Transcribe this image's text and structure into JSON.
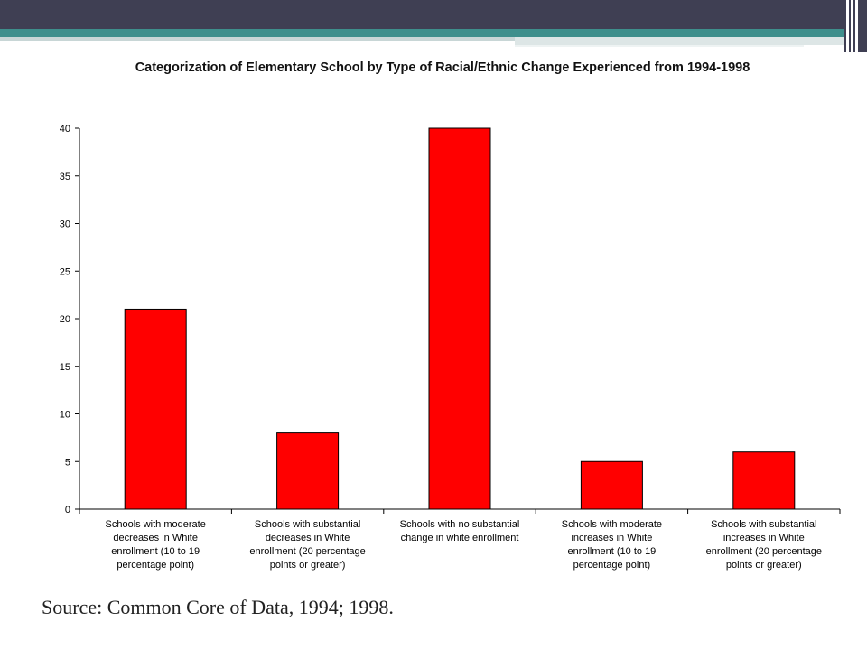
{
  "chart_data": {
    "type": "bar",
    "title": "Categorization of Elementary School by Type of Racial/Ethnic Change Experienced from 1994-1998",
    "categories": [
      "Schools with moderate decreases in White enrollment (10 to 19 percentage point)",
      "Schools with substantial decreases in White enrollment (20 percentage points or greater)",
      "Schools with no substantial change in white enrollment",
      "Schools with moderate increases in White enrollment (10 to 19 percentage point)",
      "Schools with substantial increases in White enrollment (20 percentage points or greater)"
    ],
    "category_lines": [
      [
        "Schools with moderate",
        "decreases in White",
        "enrollment (10 to 19",
        "percentage point)"
      ],
      [
        "Schools with substantial",
        "decreases in White",
        "enrollment (20 percentage",
        "points or greater)"
      ],
      [
        "Schools with no substantial",
        "change in white enrollment"
      ],
      [
        "Schools with moderate",
        "increases in White",
        "enrollment (10 to 19",
        "percentage point)"
      ],
      [
        "Schools with substantial",
        "increases in White",
        "enrollment (20 percentage",
        "points or greater)"
      ]
    ],
    "values": [
      21,
      8,
      40,
      5,
      6
    ],
    "ylim": [
      0,
      40
    ],
    "yticks": [
      0,
      5,
      10,
      15,
      20,
      25,
      30,
      35,
      40
    ],
    "xlabel": "",
    "ylabel": "",
    "grid": false,
    "bar_color": "#ff0000"
  },
  "source": "Source: Common Core of Data, 1994; 1998."
}
